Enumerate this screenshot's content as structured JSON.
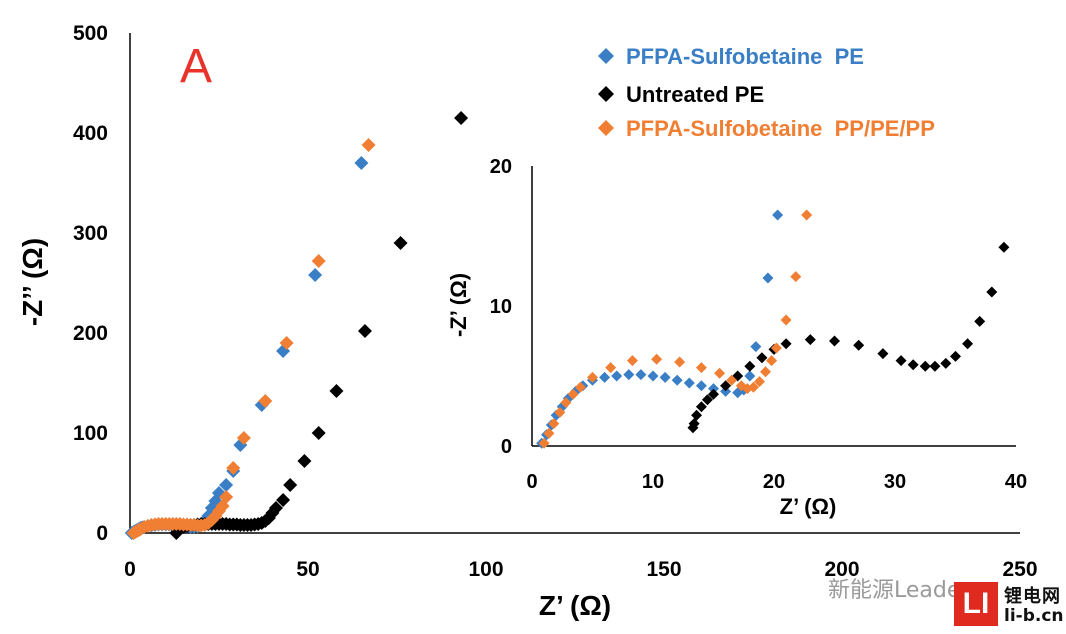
{
  "chart_data": [
    {
      "type": "scatter",
      "panel_label": "A",
      "xlabel": "Z’ (Ω)",
      "ylabel": "-Z’’ (Ω)",
      "xlim": [
        0,
        250
      ],
      "ylim": [
        0,
        500
      ],
      "xticks": [
        0,
        50,
        100,
        150,
        200,
        250
      ],
      "yticks": [
        0,
        100,
        200,
        300,
        400,
        500
      ],
      "legend_position": "top-right",
      "series": [
        {
          "name": "PFPA-Sulfobetaine  PE",
          "color": "#3a7ec6",
          "points": [
            [
              0.5,
              0
            ],
            [
              1,
              1
            ],
            [
              1.5,
              2
            ],
            [
              2,
              3
            ],
            [
              2.5,
              4
            ],
            [
              3,
              5
            ],
            [
              3.5,
              5.5
            ],
            [
              4,
              6
            ],
            [
              5,
              7
            ],
            [
              6,
              7.5
            ],
            [
              7,
              8
            ],
            [
              8,
              8.5
            ],
            [
              9,
              8.5
            ],
            [
              10,
              8.5
            ],
            [
              11,
              8.5
            ],
            [
              12,
              8
            ],
            [
              13,
              8
            ],
            [
              14,
              7.5
            ],
            [
              15,
              7
            ],
            [
              16,
              6.5
            ],
            [
              17,
              6
            ],
            [
              18,
              6
            ],
            [
              19,
              6.5
            ],
            [
              20,
              8
            ],
            [
              21,
              12
            ],
            [
              22,
              17
            ],
            [
              23,
              25
            ],
            [
              24,
              32
            ],
            [
              25,
              40
            ],
            [
              27,
              48
            ],
            [
              29,
              62
            ],
            [
              31,
              88
            ],
            [
              37,
              128
            ],
            [
              43,
              182
            ],
            [
              52,
              258
            ],
            [
              65,
              370
            ]
          ]
        },
        {
          "name": "Untreated PE",
          "color": "#000000",
          "points": [
            [
              13,
              0
            ],
            [
              13.5,
              2
            ],
            [
              14,
              4
            ],
            [
              15,
              6
            ],
            [
              16,
              7
            ],
            [
              17,
              8
            ],
            [
              18,
              8
            ],
            [
              19,
              8.5
            ],
            [
              20,
              9
            ],
            [
              21,
              9
            ],
            [
              22,
              9
            ],
            [
              23,
              9
            ],
            [
              24,
              9
            ],
            [
              25,
              9
            ],
            [
              26,
              9
            ],
            [
              27,
              9
            ],
            [
              28,
              8.5
            ],
            [
              29,
              8.5
            ],
            [
              30,
              8.5
            ],
            [
              31,
              8
            ],
            [
              32,
              8
            ],
            [
              33,
              8
            ],
            [
              34,
              8
            ],
            [
              35,
              8.5
            ],
            [
              36,
              9
            ],
            [
              37,
              10
            ],
            [
              38,
              12
            ],
            [
              39,
              15
            ],
            [
              40,
              20
            ],
            [
              41,
              25
            ],
            [
              43,
              33
            ],
            [
              45,
              48
            ],
            [
              49,
              72
            ],
            [
              53,
              100
            ],
            [
              58,
              142
            ],
            [
              66,
              202
            ],
            [
              76,
              290
            ],
            [
              93,
              415
            ]
          ]
        },
        {
          "name": "PFPA-Sulfobetaine  PP/PE/PP",
          "color": "#f07f34",
          "points": [
            [
              1,
              0
            ],
            [
              1.5,
              1
            ],
            [
              2,
              2
            ],
            [
              2.5,
              3
            ],
            [
              3,
              4
            ],
            [
              4,
              6
            ],
            [
              5,
              7
            ],
            [
              6,
              8
            ],
            [
              7,
              8.5
            ],
            [
              8,
              9
            ],
            [
              9,
              9
            ],
            [
              10,
              9
            ],
            [
              11,
              9
            ],
            [
              12,
              9
            ],
            [
              13,
              9
            ],
            [
              14,
              9
            ],
            [
              15,
              8.5
            ],
            [
              16,
              8.5
            ],
            [
              17,
              8
            ],
            [
              18,
              8
            ],
            [
              19,
              7.5
            ],
            [
              20,
              7.5
            ],
            [
              21,
              8
            ],
            [
              22,
              10
            ],
            [
              23,
              13
            ],
            [
              24,
              17
            ],
            [
              25,
              22
            ],
            [
              26,
              27
            ],
            [
              27,
              36
            ],
            [
              29,
              65
            ],
            [
              32,
              95
            ],
            [
              38,
              132
            ],
            [
              44,
              190
            ],
            [
              53,
              272
            ],
            [
              67,
              388
            ]
          ]
        }
      ]
    },
    {
      "type": "scatter",
      "xlabel": "Z’ (Ω)",
      "ylabel": "-Z’ (Ω)",
      "xlim": [
        0,
        40
      ],
      "ylim": [
        0,
        20
      ],
      "xticks": [
        0,
        10,
        20,
        30,
        40
      ],
      "yticks": [
        0,
        10,
        20
      ],
      "series": [
        {
          "name": "PFPA-Sulfobetaine  PE",
          "color": "#3a7ec6",
          "points": [
            [
              0.8,
              0.2
            ],
            [
              1.2,
              0.8
            ],
            [
              1.6,
              1.5
            ],
            [
              2,
              2.2
            ],
            [
              2.5,
              2.8
            ],
            [
              3,
              3.4
            ],
            [
              3.6,
              3.9
            ],
            [
              4.2,
              4.3
            ],
            [
              5,
              4.7
            ],
            [
              6,
              4.9
            ],
            [
              7,
              5
            ],
            [
              8,
              5.1
            ],
            [
              9,
              5.1
            ],
            [
              10,
              5
            ],
            [
              11,
              4.9
            ],
            [
              12,
              4.7
            ],
            [
              13,
              4.5
            ],
            [
              14,
              4.3
            ],
            [
              15,
              4.1
            ],
            [
              16,
              3.9
            ],
            [
              17,
              3.8
            ],
            [
              17.5,
              4
            ],
            [
              18,
              5
            ],
            [
              18.5,
              7.1
            ],
            [
              19.5,
              12
            ],
            [
              20.3,
              16.5
            ]
          ]
        },
        {
          "name": "Untreated PE",
          "color": "#000000",
          "points": [
            [
              13.3,
              1.3
            ],
            [
              13.4,
              1.6
            ],
            [
              13.6,
              2.2
            ],
            [
              14,
              2.8
            ],
            [
              14.5,
              3.3
            ],
            [
              15,
              3.7
            ],
            [
              16,
              4.3
            ],
            [
              17,
              5
            ],
            [
              18,
              5.7
            ],
            [
              19,
              6.3
            ],
            [
              20,
              6.9
            ],
            [
              21,
              7.3
            ],
            [
              23,
              7.6
            ],
            [
              25,
              7.5
            ],
            [
              27,
              7.2
            ],
            [
              29,
              6.6
            ],
            [
              30.5,
              6.1
            ],
            [
              31.5,
              5.8
            ],
            [
              32.5,
              5.7
            ],
            [
              33.3,
              5.7
            ],
            [
              34.2,
              5.9
            ],
            [
              35,
              6.4
            ],
            [
              36,
              7.3
            ],
            [
              37,
              8.9
            ],
            [
              38,
              11
            ],
            [
              39,
              14.2
            ]
          ]
        },
        {
          "name": "PFPA-Sulfobetaine  PP/PE/PP",
          "color": "#f07f34",
          "points": [
            [
              1,
              0.2
            ],
            [
              1.4,
              0.9
            ],
            [
              1.8,
              1.6
            ],
            [
              2.3,
              2.4
            ],
            [
              2.8,
              3.1
            ],
            [
              3.4,
              3.7
            ],
            [
              4,
              4.2
            ],
            [
              5,
              4.9
            ],
            [
              6.5,
              5.6
            ],
            [
              8.3,
              6.1
            ],
            [
              10.3,
              6.2
            ],
            [
              12.2,
              6
            ],
            [
              14,
              5.6
            ],
            [
              15.5,
              5.2
            ],
            [
              16.5,
              4.7
            ],
            [
              17.3,
              4.3
            ],
            [
              17.8,
              4.1
            ],
            [
              18.3,
              4.2
            ],
            [
              18.8,
              4.6
            ],
            [
              19.3,
              5.3
            ],
            [
              19.8,
              6.1
            ],
            [
              20.2,
              7
            ],
            [
              21,
              9
            ],
            [
              21.8,
              12.1
            ],
            [
              22.7,
              16.5
            ]
          ]
        }
      ]
    }
  ],
  "watermark": "新能源Leader",
  "logo": {
    "mark": "LI",
    "title": "锂电网",
    "domain": "li-b.cn"
  }
}
